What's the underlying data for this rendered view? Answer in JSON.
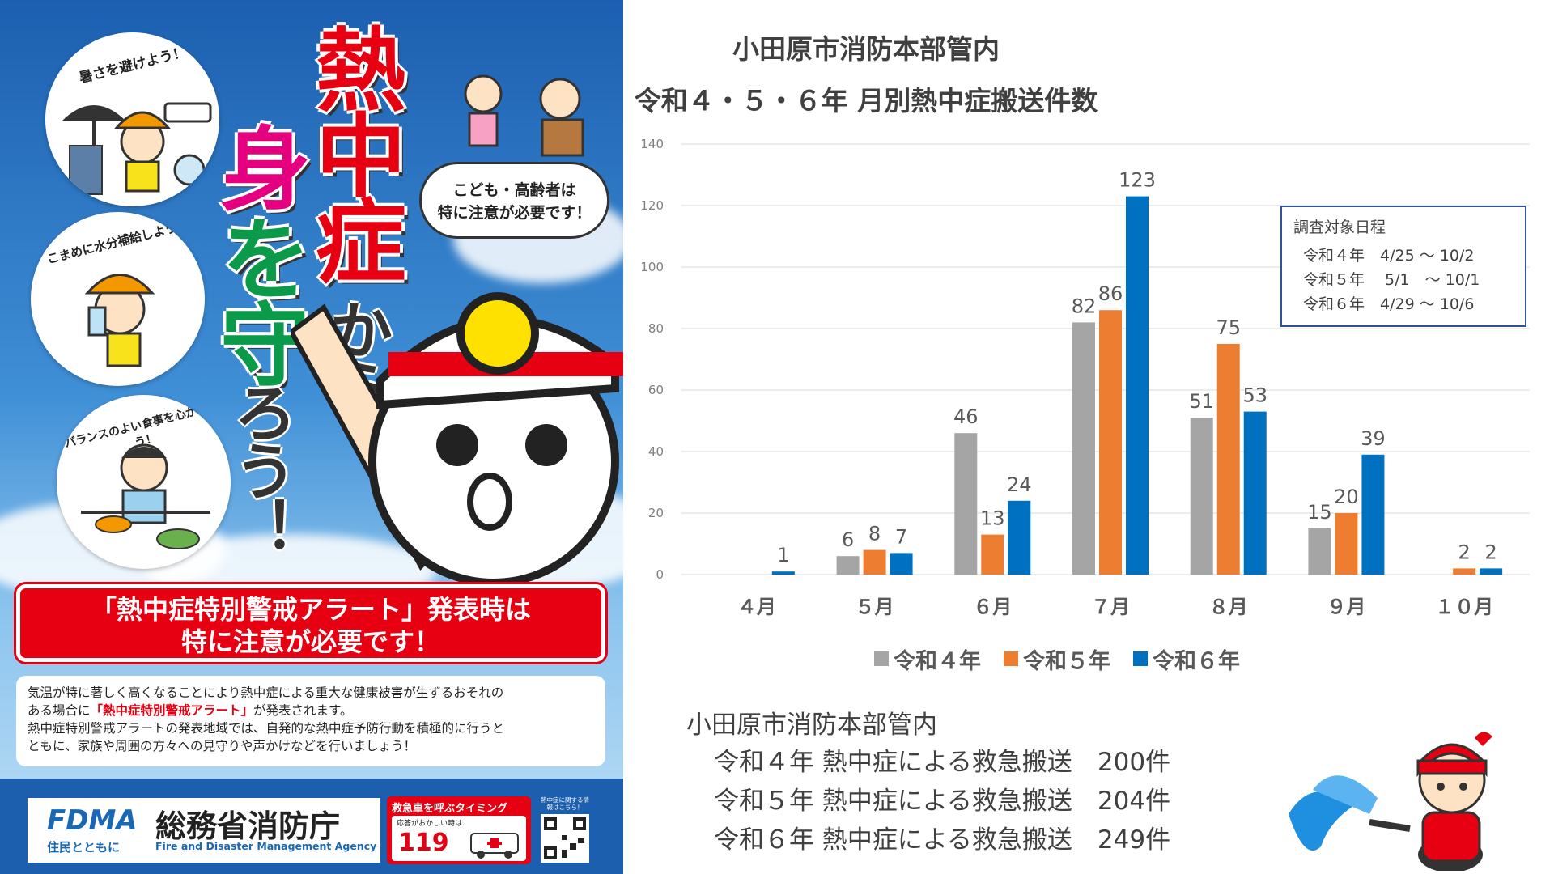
{
  "poster": {
    "circle_captions": [
      "暑さを避けよう！",
      "こまめに水分補給しよう！",
      "バランスのよい食事を心がけよう！"
    ],
    "title_line1_big": "熱中症",
    "title_line1_small": "から",
    "title_line2_a": "身",
    "title_line2_b": "を守",
    "title_line2_c": "ろう！",
    "speech_bubble": [
      "こども・高齢者は",
      "特に注意が必要です！"
    ],
    "alert_lines": [
      "「熱中症特別警戒アラート」発表時は",
      "特に注意が必要です！"
    ],
    "description": {
      "line1": "気温が特に著しく高くなることにより熱中症による重大な健康被害が生ずるおそれの",
      "line2_pre": "ある場合に",
      "line2_red": "「熱中症特別警戒アラート」",
      "line2_post": "が発表されます。",
      "line3": "熱中症特別警戒アラートの発表地域では、自発的な熱中症予防行動を積極的に行うと",
      "line4": "ともに、家族や周囲の方々への見守りや声かけなどを行いましょう！"
    },
    "footer": {
      "logo": "FDMA",
      "logo_sub": "住民とともに",
      "agency_ja": "総務省消防庁",
      "agency_en": "Fire and Disaster Management Agency",
      "timing_title": "救急車を呼ぶタイミング",
      "timing_sub": "応答がおかしい時は",
      "timing_number": "119",
      "qr_caption": "熱中症に関する情報はこちら！"
    }
  },
  "chart_data": {
    "type": "bar",
    "title": "小田原市消防本部管内",
    "subtitle": "令和４・５・６年 月別熱中症搬送件数",
    "categories": [
      "４月",
      "５月",
      "６月",
      "７月",
      "８月",
      "９月",
      "１０月"
    ],
    "series": [
      {
        "name": "令和４年",
        "color": "#a5a5a5",
        "values": [
          null,
          6,
          46,
          82,
          51,
          15,
          null
        ]
      },
      {
        "name": "令和５年",
        "color": "#ed7d31",
        "values": [
          null,
          8,
          13,
          86,
          75,
          20,
          2
        ]
      },
      {
        "name": "令和６年",
        "color": "#0070c0",
        "values": [
          1,
          7,
          24,
          123,
          53,
          39,
          2
        ]
      }
    ],
    "ylim": [
      0,
      140
    ],
    "yticks": [
      0,
      20,
      40,
      60,
      80,
      100,
      120,
      140
    ],
    "grid": true,
    "legend": "bottom"
  },
  "survey": {
    "title": "調査対象日程",
    "rows": [
      "令和４年　4/25 〜 10/2",
      "令和５年　 5/1　〜 10/1",
      "令和６年　4/29 〜 10/6"
    ]
  },
  "summary": {
    "title": "小田原市消防本部管内",
    "rows": [
      "令和４年 熱中症による救急搬送　200件",
      "令和５年 熱中症による救急搬送　204件",
      "令和６年 熱中症による救急搬送　249件"
    ]
  }
}
